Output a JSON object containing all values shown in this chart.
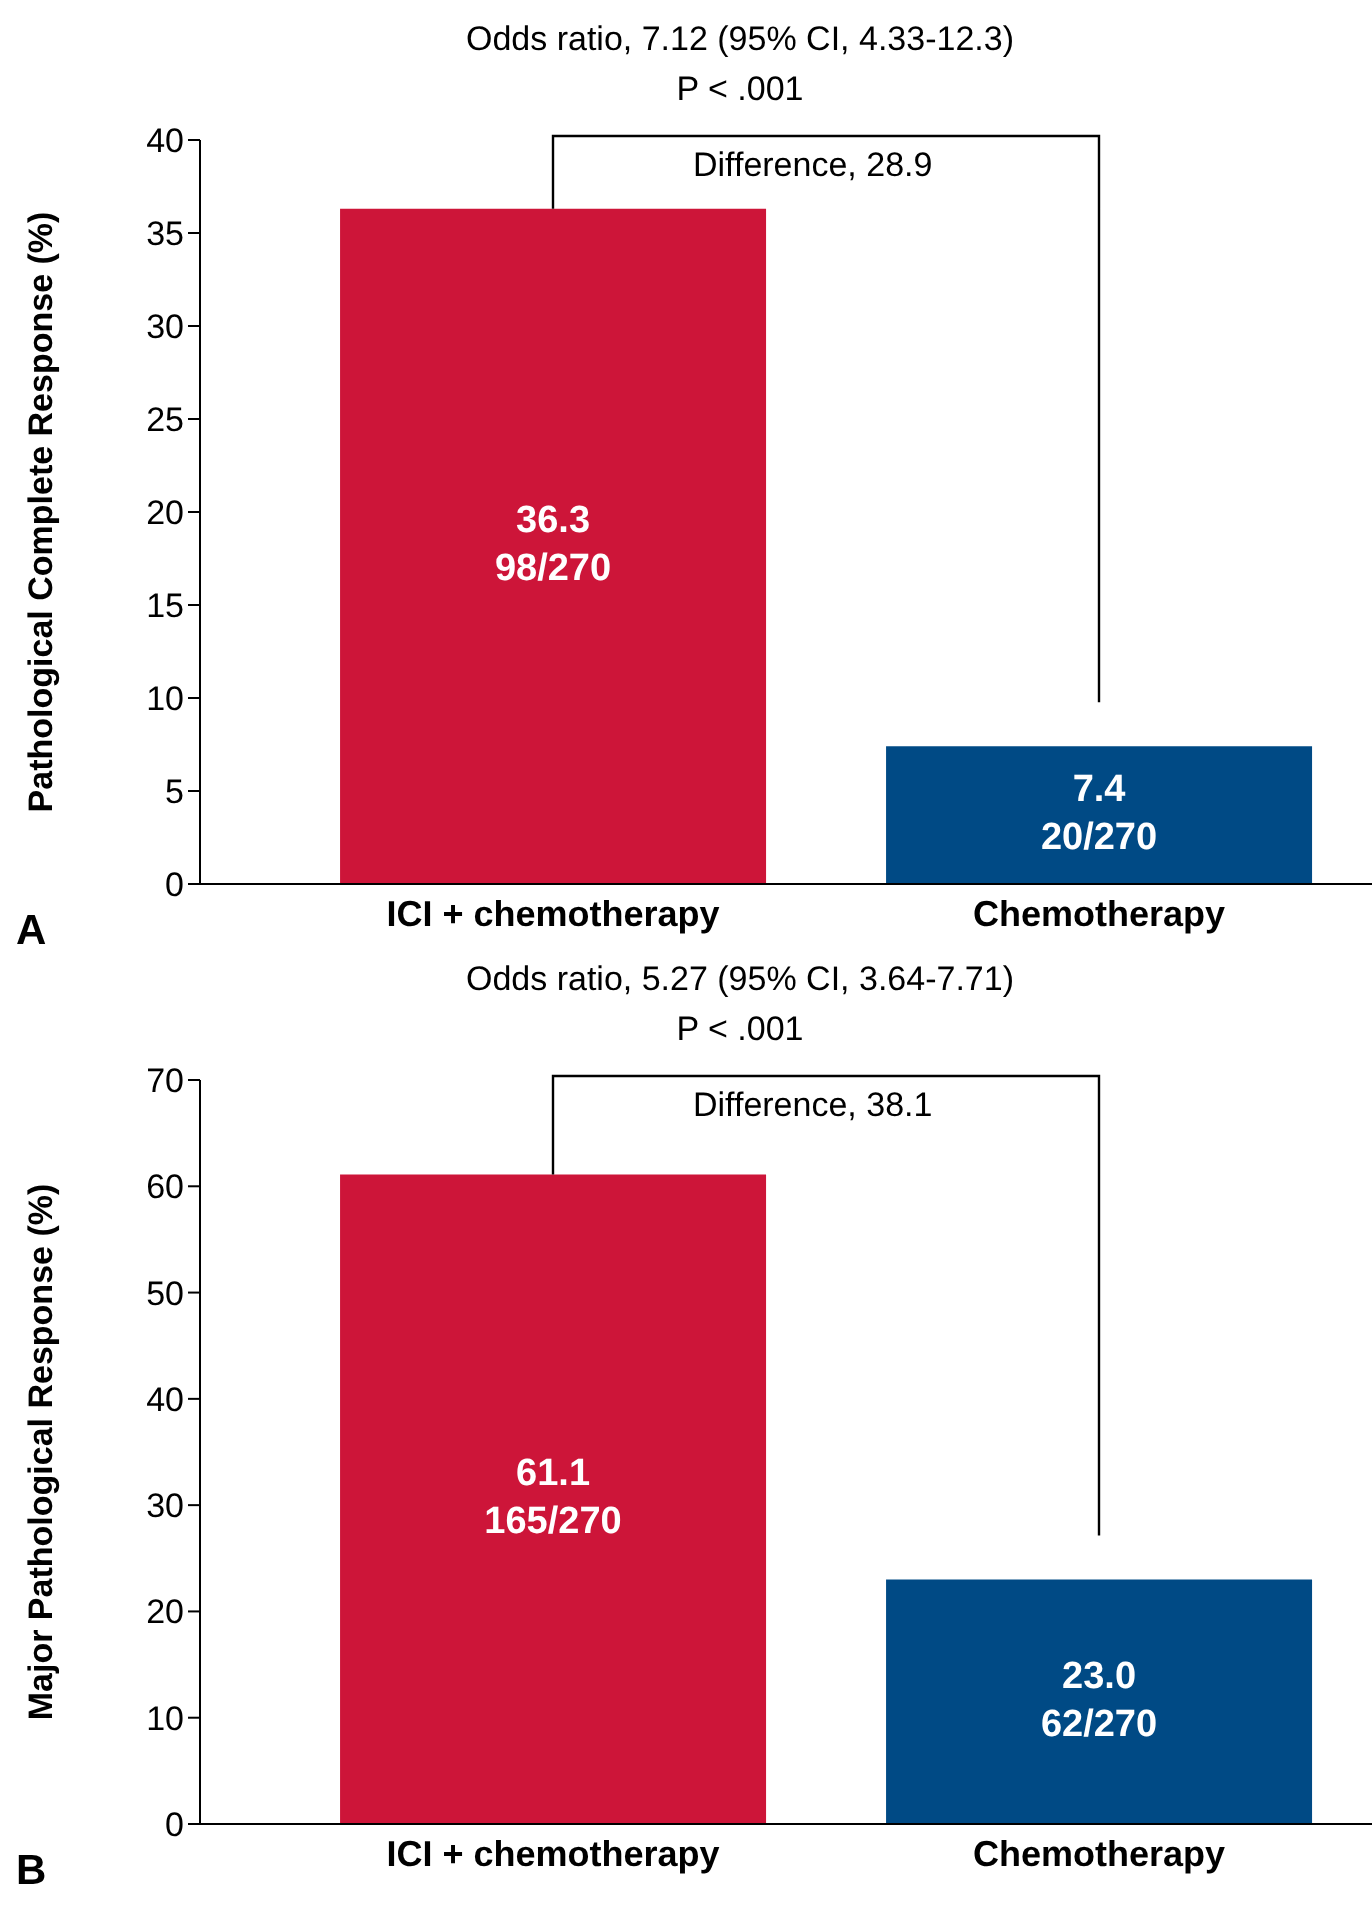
{
  "chart_data": [
    {
      "type": "bar",
      "title": "Odds ratio, 7.12 (95% CI, 4.33-12.3)",
      "subtitle": "P < .001",
      "ylabel": "Pathological Complete Response (%)",
      "categories": [
        "ICI + chemotherapy",
        "Chemotherapy"
      ],
      "values": [
        36.3,
        7.4
      ],
      "colors": [
        "#cd1539",
        "#004a85"
      ],
      "value_labels": [
        "36.3\n98/270",
        "7.4\n20/270"
      ],
      "ylim": [
        0,
        40
      ],
      "yticks": [
        0,
        5,
        10,
        15,
        20,
        25,
        30,
        35,
        40
      ],
      "annotations": [
        "Difference, 28.9",
        "A"
      ]
    },
    {
      "type": "bar",
      "title": "Odds ratio, 5.27 (95% CI, 3.64-7.71)",
      "subtitle": "P < .001",
      "ylabel": "Major Pathological Response (%)",
      "categories": [
        "ICI + chemotherapy",
        "Chemotherapy"
      ],
      "values": [
        61.1,
        23.0
      ],
      "colors": [
        "#cd1539",
        "#004a85"
      ],
      "value_labels": [
        "61.1\n165/270",
        "23.0\n62/270"
      ],
      "ylim": [
        0,
        70
      ],
      "yticks": [
        0,
        10,
        20,
        30,
        40,
        50,
        60,
        70
      ],
      "annotations": [
        "Difference, 38.1",
        "B"
      ]
    }
  ]
}
